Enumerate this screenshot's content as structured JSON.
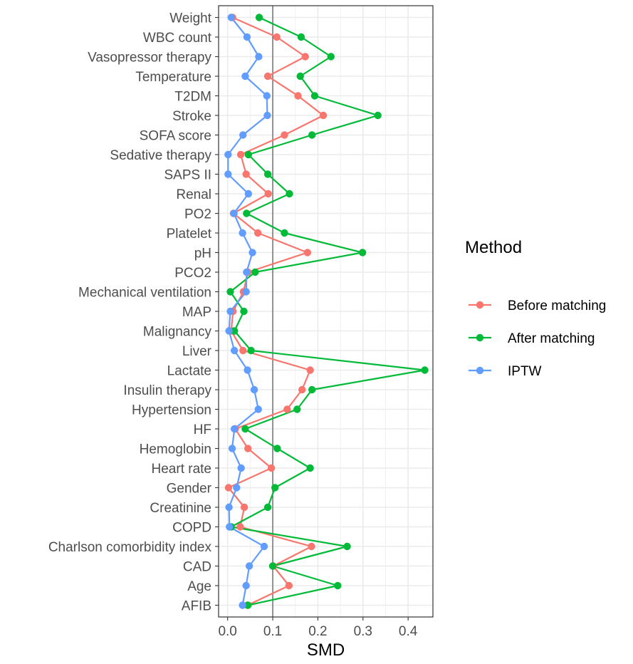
{
  "chart_data": {
    "type": "line",
    "orientation": "horizontal-categories-on-y",
    "xlabel": "SMD",
    "ylabel": "",
    "xlim": [
      -0.02,
      0.455
    ],
    "xticks": [
      "0.0",
      "0.1",
      "0.2",
      "0.3",
      "0.4"
    ],
    "xtick_values": [
      0,
      0.1,
      0.2,
      0.3,
      0.4
    ],
    "reference_line": 0.1,
    "grid": true,
    "legend": {
      "title": "Method",
      "placement": "right"
    },
    "categories": [
      "Weight",
      "WBC count",
      "Vasopressor therapy",
      "Temperature",
      "T2DM",
      "Stroke",
      "SOFA score",
      "Sedative therapy",
      "SAPS II",
      "Renal",
      "PO2",
      "Platelet",
      "pH",
      "PCO2",
      "Mechanical ventilation",
      "MAP",
      "Malignancy",
      "Liver",
      "Lactate",
      "Insulin therapy",
      "Hypertension",
      "HF",
      "Hemoglobin",
      "Heart rate",
      "Gender",
      "Creatinine",
      "COPD",
      "Charlson comorbidity index",
      "CAD",
      "Age",
      "AFIB"
    ],
    "series": [
      {
        "name": "Before matching",
        "color": "#F8766D",
        "values": [
          0.011,
          0.109,
          0.172,
          0.089,
          0.156,
          0.212,
          0.126,
          0.029,
          0.041,
          0.09,
          0.013,
          0.067,
          0.177,
          0.045,
          0.035,
          0.012,
          0.008,
          0.034,
          0.183,
          0.165,
          0.132,
          0.017,
          0.045,
          0.097,
          0.002,
          0.037,
          0.028,
          0.186,
          0.101,
          0.136,
          0.044
        ]
      },
      {
        "name": "After matching",
        "color": "#00BA38",
        "values": [
          0.07,
          0.163,
          0.229,
          0.161,
          0.193,
          0.333,
          0.187,
          0.046,
          0.089,
          0.137,
          0.042,
          0.126,
          0.299,
          0.061,
          0.006,
          0.036,
          0.015,
          0.052,
          0.437,
          0.187,
          0.154,
          0.039,
          0.11,
          0.183,
          0.105,
          0.089,
          0.008,
          0.265,
          0.1,
          0.244,
          0.045
        ]
      },
      {
        "name": "IPTW",
        "color": "#619CFF",
        "values": [
          0.008,
          0.043,
          0.069,
          0.039,
          0.087,
          0.088,
          0.034,
          0.001,
          0.001,
          0.046,
          0.014,
          0.033,
          0.055,
          0.042,
          0.041,
          0.006,
          0.003,
          0.015,
          0.044,
          0.059,
          0.068,
          0.015,
          0.01,
          0.03,
          0.02,
          0.003,
          0.004,
          0.081,
          0.048,
          0.041,
          0.033
        ]
      }
    ]
  }
}
